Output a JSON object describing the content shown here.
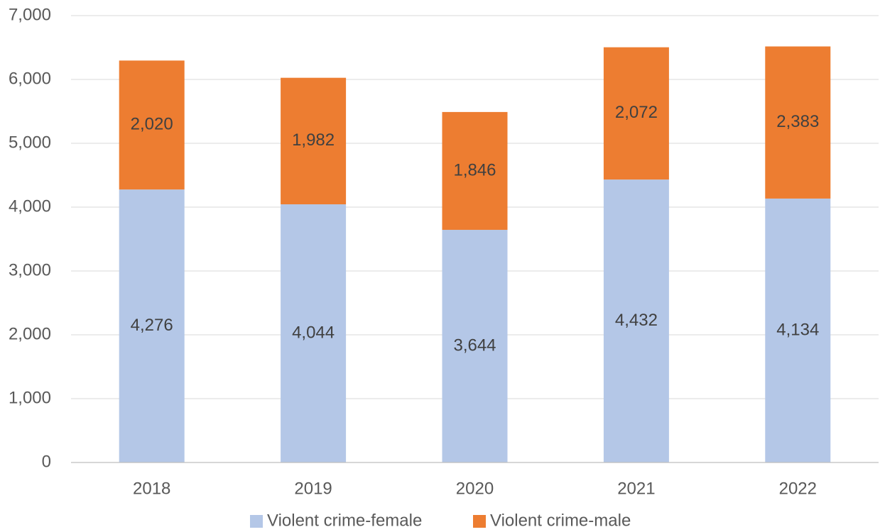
{
  "chart_data": {
    "type": "bar",
    "stacked": true,
    "categories": [
      "2018",
      "2019",
      "2020",
      "2021",
      "2022"
    ],
    "series": [
      {
        "name": "Violent crime-female",
        "values": [
          4276,
          4044,
          3644,
          4432,
          4134
        ],
        "labels": [
          "4,276",
          "4,044",
          "3,644",
          "4,432",
          "4,134"
        ],
        "color": "#b4c7e7"
      },
      {
        "name": "Violent crime-male",
        "values": [
          2020,
          1982,
          1846,
          2072,
          2383
        ],
        "labels": [
          "2,020",
          "1,982",
          "1,846",
          "2,072",
          "2,383"
        ],
        "color": "#ed7d31"
      }
    ],
    "ylim": [
      0,
      7000
    ],
    "yticks": [
      0,
      1000,
      2000,
      3000,
      4000,
      5000,
      6000,
      7000
    ],
    "ytick_labels": [
      "0",
      "1,000",
      "2,000",
      "3,000",
      "4,000",
      "5,000",
      "6,000",
      "7,000"
    ],
    "grid": true,
    "legend_position": "bottom",
    "title": "",
    "xlabel": "",
    "ylabel": ""
  }
}
